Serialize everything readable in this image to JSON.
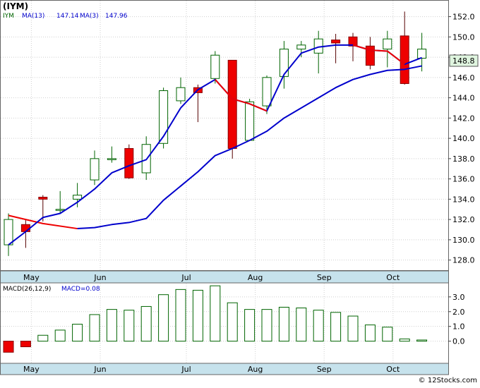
{
  "chart_data": [
    {
      "type": "candlestick",
      "title": "(IYM)",
      "legend": [
        {
          "label": "IYM",
          "color": "#006400"
        },
        {
          "label": "MA(13)",
          "value": "147.14",
          "color": "#0000cc"
        },
        {
          "label": "MA(3)",
          "value": "147.96",
          "color": "#0000cc"
        }
      ],
      "last_price_label": "148.8",
      "ylim": [
        127.0,
        153.5
      ],
      "y_ticks": [
        "128.0",
        "130.0",
        "132.0",
        "134.0",
        "136.0",
        "138.0",
        "140.0",
        "142.0",
        "144.0",
        "146.0",
        "148.0",
        "150.0",
        "152.0"
      ],
      "x_labels": [
        {
          "label": "May",
          "index": 1
        },
        {
          "label": "Jun",
          "index": 5
        },
        {
          "label": "Jul",
          "index": 10
        },
        {
          "label": "Aug",
          "index": 14
        },
        {
          "label": "Sep",
          "index": 18
        },
        {
          "label": "Oct",
          "index": 22
        }
      ],
      "candles": [
        {
          "open": 129.5,
          "high": 132.6,
          "low": 128.4,
          "close": 132.0
        },
        {
          "open": 131.5,
          "high": 132.0,
          "low": 129.2,
          "close": 130.8
        },
        {
          "open": 134.2,
          "high": 134.4,
          "low": 131.8,
          "close": 134.0
        },
        {
          "open": 133.0,
          "high": 134.8,
          "low": 132.6,
          "close": 133.0
        },
        {
          "open": 134.0,
          "high": 135.6,
          "low": 133.2,
          "close": 134.4
        },
        {
          "open": 135.9,
          "high": 138.8,
          "low": 135.4,
          "close": 138.0
        },
        {
          "open": 137.9,
          "high": 139.2,
          "low": 137.6,
          "close": 138.0
        },
        {
          "open": 139.0,
          "high": 139.4,
          "low": 136.0,
          "close": 136.1
        },
        {
          "open": 136.6,
          "high": 140.2,
          "low": 135.9,
          "close": 139.4
        },
        {
          "open": 139.5,
          "high": 145.0,
          "low": 139.0,
          "close": 144.7
        },
        {
          "open": 143.7,
          "high": 146.0,
          "low": 143.4,
          "close": 145.0
        },
        {
          "open": 145.0,
          "high": 145.3,
          "low": 141.6,
          "close": 144.5
        },
        {
          "open": 145.9,
          "high": 148.6,
          "low": 145.4,
          "close": 148.2
        },
        {
          "open": 147.7,
          "high": 147.7,
          "low": 138.0,
          "close": 139.0
        },
        {
          "open": 139.8,
          "high": 143.9,
          "low": 139.8,
          "close": 143.6
        },
        {
          "open": 143.2,
          "high": 146.2,
          "low": 142.4,
          "close": 146.0
        },
        {
          "open": 146.1,
          "high": 149.6,
          "low": 144.9,
          "close": 148.8
        },
        {
          "open": 148.8,
          "high": 149.6,
          "low": 148.0,
          "close": 149.2
        },
        {
          "open": 148.4,
          "high": 150.6,
          "low": 146.4,
          "close": 149.8
        },
        {
          "open": 149.7,
          "high": 150.3,
          "low": 147.4,
          "close": 149.4
        },
        {
          "open": 150.0,
          "high": 150.4,
          "low": 147.6,
          "close": 149.1
        },
        {
          "open": 149.1,
          "high": 150.0,
          "low": 146.8,
          "close": 147.2
        },
        {
          "open": 148.8,
          "high": 150.6,
          "low": 147.0,
          "close": 149.8
        },
        {
          "open": 150.1,
          "high": 152.5,
          "low": 145.3,
          "close": 145.4
        },
        {
          "open": 147.9,
          "high": 150.4,
          "low": 146.6,
          "close": 148.8
        }
      ],
      "series": [
        {
          "name": "MA(3)",
          "values": [
            null,
            null,
            null,
            null,
            null,
            null,
            null,
            null,
            null,
            null,
            null,
            null,
            null,
            null,
            null,
            null,
            null,
            null,
            null,
            null,
            null,
            null,
            null,
            null,
            null
          ],
          "segments": [
            {
              "color": "#ee0000",
              "points": [
                [
                  0,
                  132.4
                ],
                [
                  2,
                  131.6
                ],
                [
                  4,
                  131.1
                ],
                [
                  5,
                  131.2
                ],
                [
                  6,
                  131.5
                ],
                [
                  7,
                  131.7
                ],
                [
                  8,
                  132.1
                ],
                [
                  9,
                  133.9
                ],
                [
                  10,
                  135.3
                ],
                [
                  11,
                  136.7
                ],
                [
                  12,
                  138.3
                ],
                [
                  13,
                  139.0
                ],
                [
                  14,
                  139.8
                ],
                [
                  15,
                  140.7
                ],
                [
                  16,
                  142.0
                ],
                [
                  17,
                  143.0
                ],
                [
                  18,
                  144.0
                ],
                [
                  19,
                  145.0
                ],
                [
                  20,
                  145.8
                ],
                [
                  21,
                  146.3
                ],
                [
                  22,
                  146.7
                ],
                [
                  23,
                  146.8
                ],
                [
                  24,
                  147.14
                ]
              ],
              "hidden": true
            }
          ]
        },
        {
          "name": "MA(13)",
          "points": [
            [
              0,
              132.4
            ],
            [
              2,
              131.6
            ],
            [
              4,
              131.1
            ],
            [
              5,
              131.2
            ],
            [
              6,
              131.5
            ],
            [
              7,
              131.7
            ],
            [
              8,
              132.1
            ],
            [
              9,
              133.9
            ],
            [
              10,
              135.3
            ],
            [
              11,
              136.7
            ],
            [
              12,
              138.3
            ],
            [
              13,
              139.0
            ],
            [
              14,
              139.8
            ],
            [
              15,
              140.7
            ],
            [
              16,
              142.0
            ],
            [
              17,
              143.0
            ],
            [
              18,
              144.0
            ],
            [
              19,
              145.0
            ],
            [
              20,
              145.8
            ],
            [
              21,
              146.3
            ],
            [
              22,
              146.7
            ],
            [
              23,
              146.8
            ],
            [
              24,
              147.14
            ]
          ],
          "red_until": 4
        },
        {
          "name": "MA(3)",
          "points": [
            [
              0,
              129.5
            ],
            [
              1,
              130.8
            ],
            [
              2,
              132.2
            ],
            [
              3,
              132.6
            ],
            [
              4,
              133.7
            ],
            [
              5,
              135.0
            ],
            [
              6,
              136.6
            ],
            [
              7,
              137.3
            ],
            [
              8,
              137.9
            ],
            [
              9,
              140.2
            ],
            [
              10,
              143.0
            ],
            [
              11,
              144.8
            ],
            [
              12,
              145.8
            ],
            [
              13,
              143.9
            ],
            [
              14,
              143.4
            ],
            [
              15,
              142.7
            ],
            [
              16,
              146.3
            ],
            [
              17,
              148.4
            ],
            [
              18,
              149.0
            ],
            [
              19,
              149.2
            ],
            [
              20,
              149.2
            ],
            [
              21,
              148.7
            ],
            [
              22,
              148.6
            ],
            [
              23,
              147.3
            ],
            [
              24,
              147.96
            ]
          ],
          "red_ranges": [
            [
              12,
              15
            ],
            [
              20,
              23
            ]
          ]
        }
      ]
    },
    {
      "type": "bar",
      "title": "MACD(26,12,9)",
      "value_label": "MACD=0.08",
      "ylim": [
        -1.5,
        3.9
      ],
      "y_ticks": [
        "0.0",
        "1.0",
        "2.0",
        "3.0"
      ],
      "x_labels": [
        {
          "label": "May",
          "index": 1
        },
        {
          "label": "Jun",
          "index": 5
        },
        {
          "label": "Jul",
          "index": 10
        },
        {
          "label": "Aug",
          "index": 14
        },
        {
          "label": "Sep",
          "index": 18
        },
        {
          "label": "Oct",
          "index": 22
        }
      ],
      "values": [
        -0.75,
        -0.38,
        0.4,
        0.75,
        1.15,
        1.8,
        2.15,
        2.1,
        2.35,
        3.15,
        3.5,
        3.45,
        3.75,
        2.6,
        2.15,
        2.15,
        2.3,
        2.25,
        2.1,
        1.95,
        1.7,
        1.1,
        0.95,
        0.15,
        0.08
      ]
    }
  ],
  "colors": {
    "up": "#006400",
    "down": "#ee0000",
    "ma": "#0000cc",
    "axis_band": "#c6e2ec",
    "price_box": "#dff5df"
  },
  "footer": "© 12Stocks.com"
}
